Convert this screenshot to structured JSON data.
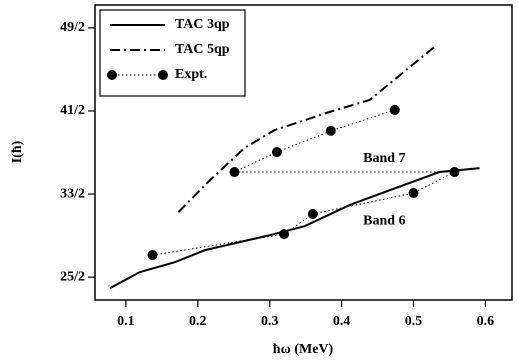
{
  "chart_data": {
    "type": "line",
    "xlabel": "ħω (MeV)",
    "ylabel": "I(ħ)",
    "xlim": [
      0.057,
      0.637
    ],
    "xticks": [
      0.1,
      0.2,
      0.3,
      0.4,
      0.5,
      0.6
    ],
    "ylim": [
      11.4,
      25.6
    ],
    "yticks": [
      {
        "value": 12.5,
        "label": "25/2"
      },
      {
        "value": 16.5,
        "label": "33/2"
      },
      {
        "value": 20.5,
        "label": "41/2"
      },
      {
        "value": 24.5,
        "label": "49/2"
      }
    ],
    "legend": "upper left",
    "series": [
      {
        "name": "TAC 3qp",
        "color": "#000000",
        "style": "solid",
        "x": [
          0.078,
          0.119,
          0.168,
          0.21,
          0.3,
          0.349,
          0.411,
          0.536,
          0.592
        ],
        "values": [
          11.97,
          12.74,
          13.22,
          13.8,
          14.52,
          14.96,
          15.97,
          17.56,
          17.75
        ]
      },
      {
        "name": "TAC 5qp",
        "color": "#000000",
        "style": "dashdot",
        "x": [
          0.173,
          0.217,
          0.265,
          0.307,
          0.383,
          0.439,
          0.529
        ],
        "values": [
          15.63,
          17.17,
          18.72,
          19.58,
          20.45,
          21.03,
          23.58
        ]
      },
      {
        "name": "Expt.",
        "color": "#000000",
        "style": "dotted-marker",
        "x": [
          0.137,
          0.32,
          0.36,
          0.5,
          0.557,
          0.251,
          0.31,
          0.385,
          0.474
        ],
        "values": [
          13.56,
          14.57,
          15.54,
          16.55,
          17.56,
          17.56,
          18.52,
          19.54,
          20.55
        ]
      }
    ],
    "annotations": [
      "Band 7",
      "Band 6"
    ]
  }
}
